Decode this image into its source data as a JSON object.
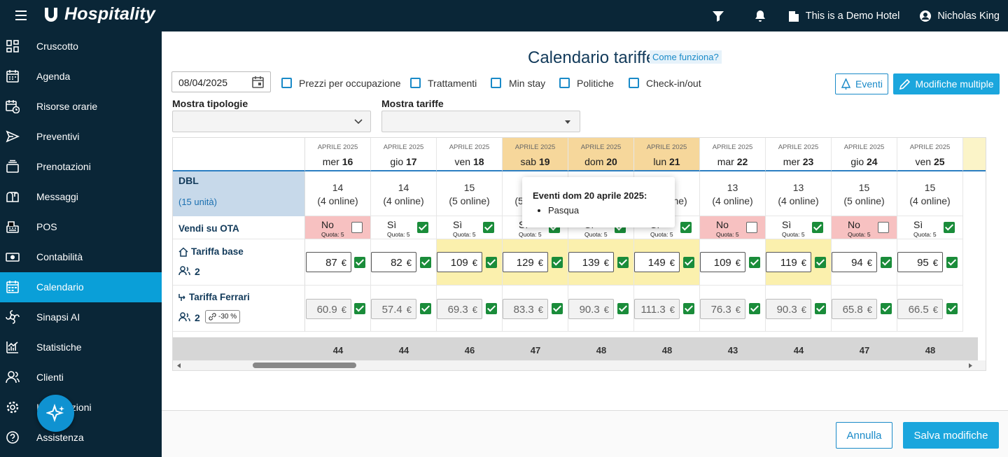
{
  "app": {
    "brand": "Hospitality"
  },
  "topbar": {
    "hotel": "This is a Demo Hotel",
    "user": "Nicholas King"
  },
  "sidebar": {
    "items": [
      {
        "label": "Cruscotto",
        "icon": "dashboard-icon"
      },
      {
        "label": "Agenda",
        "icon": "agenda-icon"
      },
      {
        "label": "Risorse orarie",
        "icon": "calendar-clock-icon"
      },
      {
        "label": "Preventivi",
        "icon": "send-icon"
      },
      {
        "label": "Prenotazioni",
        "icon": "bookings-icon"
      },
      {
        "label": "Messaggi",
        "icon": "mailbox-icon"
      },
      {
        "label": "POS",
        "icon": "cash-register-icon"
      },
      {
        "label": "Contabilità",
        "icon": "money-icon"
      },
      {
        "label": "Calendario",
        "icon": "calendar-icon"
      },
      {
        "label": "Sinapsi AI",
        "icon": "ai-icon"
      },
      {
        "label": "Statistiche",
        "icon": "chart-icon"
      },
      {
        "label": "Clienti",
        "icon": "users-icon"
      },
      {
        "label": "Impostazioni",
        "icon": "gear-icon"
      },
      {
        "label": "Assistenza",
        "icon": "help-icon"
      }
    ],
    "active": "Calendario"
  },
  "page": {
    "title": "Calendario tariffe",
    "howto": "Come funziona?"
  },
  "filters": {
    "date": "08/04/2025",
    "options": [
      "Prezzi per occupazione",
      "Trattamenti",
      "Min stay",
      "Politiche",
      "Check-in/out"
    ],
    "show_types_label": "Mostra tipologie",
    "show_rates_label": "Mostra tariffe"
  },
  "buttons": {
    "events": "Eventi",
    "bulk": "Modifiche multiple",
    "cancel": "Annulla",
    "save": "Salva modifiche"
  },
  "room": {
    "code": "DBL",
    "units": "(15 unità)",
    "ota_label": "Vendi su OTA"
  },
  "rates": [
    {
      "name": "Tariffa base",
      "guests": "2",
      "icon": "home-icon"
    },
    {
      "name": "Tariffa Ferrari",
      "guests": "2",
      "discount": "-30 %",
      "icon": "branch-icon"
    }
  ],
  "currency": "€",
  "quota_label": "Quota: 5",
  "days": [
    {
      "month": "APRILE 2025",
      "dow": "mer",
      "num": "16",
      "weekend": false,
      "avail": "14",
      "online": "(4 online)",
      "ota": "No",
      "ota_on": false,
      "base": "87",
      "hl": false,
      "ferrari": "60.9",
      "total": "44"
    },
    {
      "month": "APRILE 2025",
      "dow": "gio",
      "num": "17",
      "weekend": false,
      "avail": "14",
      "online": "(4 online)",
      "ota": "Sì",
      "ota_on": true,
      "base": "82",
      "hl": false,
      "ferrari": "57.4",
      "total": "44"
    },
    {
      "month": "APRILE 2025",
      "dow": "ven",
      "num": "18",
      "weekend": false,
      "avail": "15",
      "online": "(5 online)",
      "ota": "Sì",
      "ota_on": true,
      "base": "109",
      "hl": true,
      "ferrari": "69.3",
      "total": "46"
    },
    {
      "month": "APRILE 2025",
      "dow": "sab",
      "num": "19",
      "weekend": true,
      "avail": "15",
      "online": "(5 online)",
      "ota": "Sì",
      "ota_on": true,
      "base": "129",
      "hl": true,
      "ferrari": "83.3",
      "total": "47"
    },
    {
      "month": "APRILE 2025",
      "dow": "dom",
      "num": "20",
      "weekend": true,
      "avail": "15",
      "online": "(5 online)",
      "ota": "Sì",
      "ota_on": true,
      "base": "139",
      "hl": true,
      "ferrari": "90.3",
      "total": "48"
    },
    {
      "month": "APRILE 2025",
      "dow": "lun",
      "num": "21",
      "weekend": true,
      "avail": "15",
      "online": "(5 online)",
      "ota": "Sì",
      "ota_on": true,
      "base": "149",
      "hl": true,
      "ferrari": "111.3",
      "total": "48"
    },
    {
      "month": "APRILE 2025",
      "dow": "mar",
      "num": "22",
      "weekend": false,
      "avail": "13",
      "online": "(4 online)",
      "ota": "No",
      "ota_on": false,
      "base": "109",
      "hl": false,
      "ferrari": "76.3",
      "total": "43"
    },
    {
      "month": "APRILE 2025",
      "dow": "mer",
      "num": "23",
      "weekend": false,
      "avail": "13",
      "online": "(4 online)",
      "ota": "Sì",
      "ota_on": true,
      "base": "119",
      "hl": true,
      "ferrari": "90.3",
      "total": "44"
    },
    {
      "month": "APRILE 2025",
      "dow": "gio",
      "num": "24",
      "weekend": false,
      "avail": "15",
      "online": "(5 online)",
      "ota": "No",
      "ota_on": false,
      "base": "94",
      "hl": false,
      "ferrari": "65.8",
      "total": "47"
    },
    {
      "month": "APRILE 2025",
      "dow": "ven",
      "num": "25",
      "weekend": false,
      "avail": "15",
      "online": "(4 online)",
      "ota": "Sì",
      "ota_on": true,
      "base": "95",
      "hl": false,
      "ferrari": "66.5",
      "total": "48"
    }
  ],
  "tooltip": {
    "title": "Eventi dom 20 aprile 2025:",
    "items": [
      "Pasqua"
    ]
  },
  "colors": {
    "sidebar": "#0a2637",
    "accent": "#1ba6dd",
    "weekend": "#f6d79b",
    "ota_off": "#f7c1c1",
    "highlight": "#fbf0ad",
    "check": "#1a8c3a"
  }
}
